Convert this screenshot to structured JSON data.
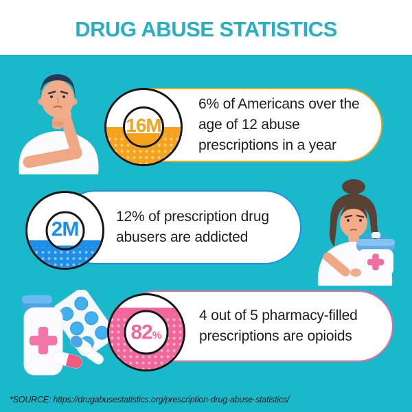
{
  "title": "DRUG ABUSE STATISTICS",
  "colors": {
    "background": "#19b8cb",
    "title": "#27b0c4",
    "outline": "#161616",
    "text": "#1e1e1e",
    "orange": "#F5A31C",
    "blue": "#1E8FE8",
    "pink": "#F0679C"
  },
  "stats": [
    {
      "value": "16M",
      "suffix": "",
      "accent": "#F5A31C",
      "fill_percent": 43,
      "inner_fill_percent": 33,
      "description": "6% of Americans over the age of 12 abuse prescriptions in a year"
    },
    {
      "value": "2M",
      "suffix": "",
      "accent": "#1E8FE8",
      "fill_percent": 29,
      "inner_fill_percent": 6,
      "description": "12% of prescription drug abusers are addicted"
    },
    {
      "value": "82",
      "suffix": "%",
      "accent": "#F0679C",
      "fill_percent": 76,
      "inner_fill_percent": 0,
      "description": "4 out of 5 pharmacy-filled prescriptions are opioids"
    }
  ],
  "illustrations": [
    {
      "name": "thinking-man"
    },
    {
      "name": "woman-with-first-aid-kit"
    },
    {
      "name": "medicine-bottle-and-pills"
    }
  ],
  "source": "*SOURCE: https://drugabusestatistics.org/prescription-drug-abuse-statistics/"
}
